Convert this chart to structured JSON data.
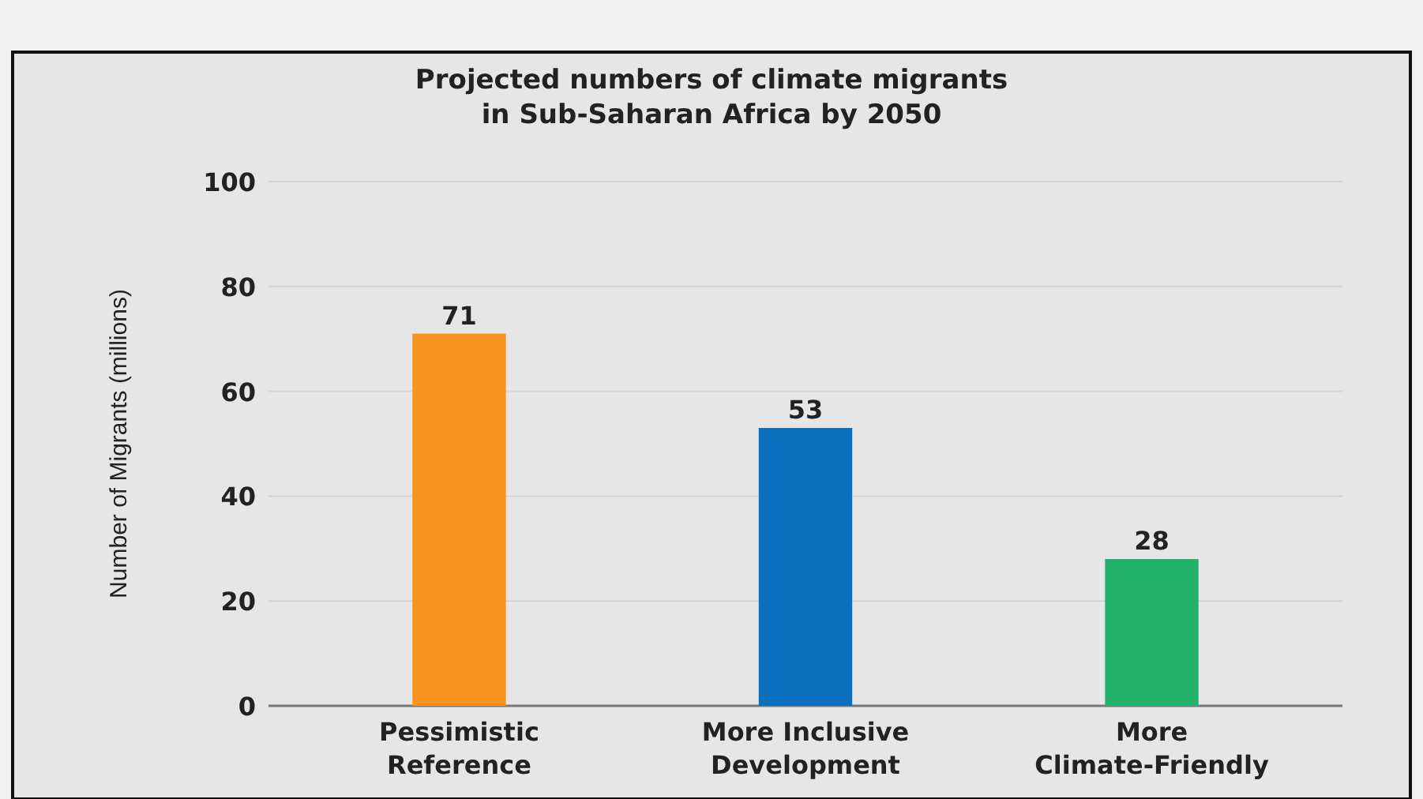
{
  "chart_data": {
    "type": "bar",
    "title": "Projected numbers of climate migrants\nin Sub-Saharan Africa by 2050",
    "ylabel": "Number of Migrants (millions)",
    "categories": [
      "Pessimistic\nReference",
      "More Inclusive\nDevelopment",
      "More\nClimate-Friendly"
    ],
    "values": [
      71,
      53,
      28
    ],
    "colors": [
      "#f7941d",
      "#0a6fbd",
      "#22b26b"
    ],
    "ylim": [
      0,
      100
    ],
    "yticks": [
      0,
      20,
      40,
      60,
      80,
      100
    ],
    "grid": "y",
    "data_labels": true
  }
}
